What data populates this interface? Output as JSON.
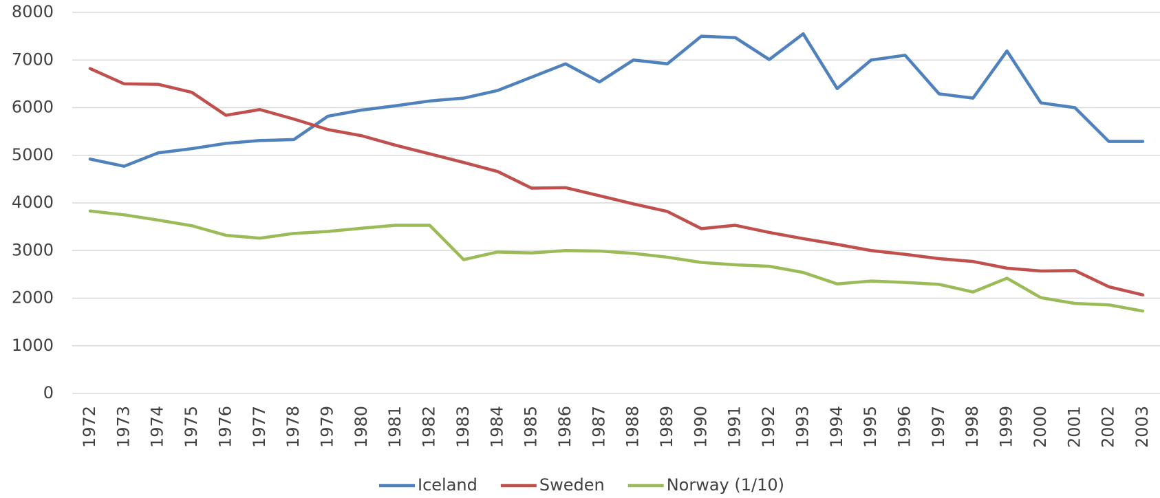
{
  "chart_data": {
    "type": "line",
    "categories": [
      "1972",
      "1973",
      "1974",
      "1975",
      "1976",
      "1977",
      "1978",
      "1979",
      "1980",
      "1981",
      "1982",
      "1983",
      "1984",
      "1985",
      "1986",
      "1987",
      "1988",
      "1989",
      "1990",
      "1991",
      "1992",
      "1993",
      "1994",
      "1995",
      "1996",
      "1997",
      "1998",
      "1999",
      "2000",
      "2001",
      "2002",
      "2003"
    ],
    "series": [
      {
        "name": "Iceland",
        "color": "#4f81bd",
        "values": [
          4920,
          4770,
          5050,
          5140,
          5250,
          5310,
          5330,
          5820,
          5950,
          6040,
          6140,
          6200,
          6360,
          6640,
          6920,
          6540,
          7000,
          6920,
          7500,
          7470,
          7010,
          7550,
          6400,
          7000,
          7100,
          6290,
          6200,
          7190,
          6100,
          6000,
          5290,
          5290
        ]
      },
      {
        "name": "Sweden",
        "color": "#c0504d",
        "values": [
          6820,
          6500,
          6490,
          6320,
          5840,
          5960,
          5760,
          5540,
          5410,
          5210,
          5030,
          4850,
          4660,
          4310,
          4320,
          4150,
          3980,
          3820,
          3460,
          3530,
          3380,
          3250,
          3130,
          3000,
          2920,
          2830,
          2770,
          2630,
          2570,
          2580,
          2240,
          2070
        ]
      },
      {
        "name": "Norway (1/10)",
        "color": "#9bbb59",
        "values": [
          3830,
          3750,
          3640,
          3520,
          3320,
          3260,
          3360,
          3400,
          3470,
          3530,
          3530,
          2810,
          2970,
          2950,
          3000,
          2990,
          2940,
          2860,
          2750,
          2700,
          2670,
          2540,
          2300,
          2360,
          2330,
          2290,
          2130,
          2420,
          2010,
          1890,
          1860,
          1730
        ]
      }
    ],
    "ylim": [
      0,
      8000
    ],
    "yticks": [
      0,
      1000,
      2000,
      3000,
      4000,
      5000,
      6000,
      7000,
      8000
    ],
    "grid": true,
    "legend": "bottom"
  }
}
